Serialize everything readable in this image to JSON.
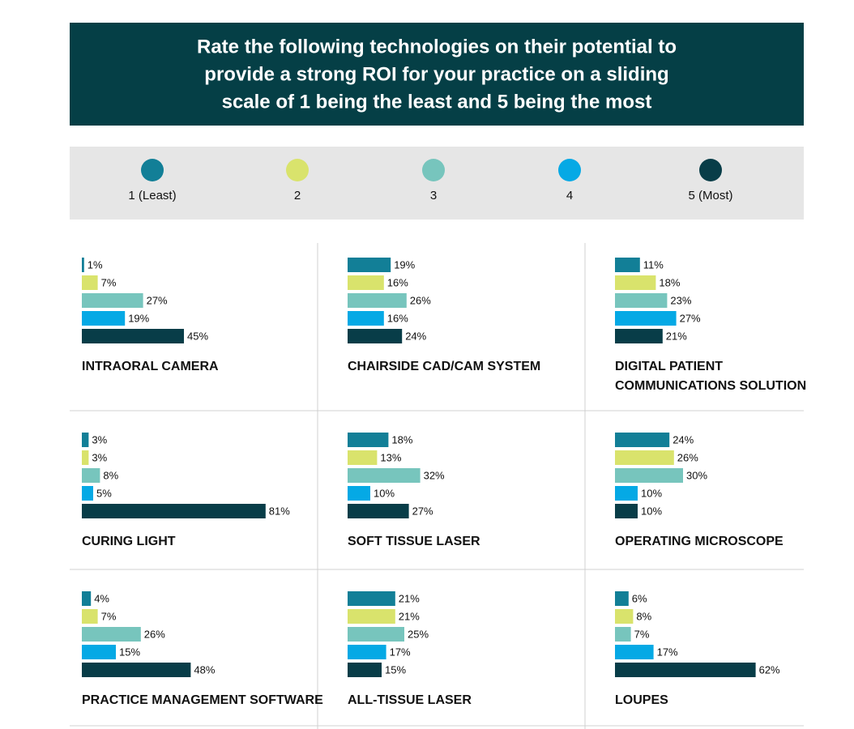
{
  "header": {
    "title": [
      "Rate the following technologies on their potential to",
      "provide a strong ROI for your practice on a sliding",
      "scale of 1 being the least and 5 being the most"
    ]
  },
  "legend": {
    "items": [
      {
        "label": "1 (Least)",
        "color": "#127f97"
      },
      {
        "label": "2",
        "color": "#d9e36c"
      },
      {
        "label": "3",
        "color": "#77c5bd"
      },
      {
        "label": "4",
        "color": "#05a9e5"
      },
      {
        "label": "5 (Most)",
        "color": "#083d48"
      }
    ]
  },
  "chart_data": [
    {
      "type": "bar",
      "orientation": "horizontal",
      "title": [
        "INTRAORAL CAMERA"
      ],
      "values": [
        1,
        7,
        27,
        19,
        45
      ],
      "value_labels": [
        "1%",
        "7%",
        "27%",
        "19%",
        "45%"
      ],
      "xlim": [
        0,
        100
      ]
    },
    {
      "type": "bar",
      "orientation": "horizontal",
      "title": [
        "CHAIRSIDE CAD/CAM SYSTEM"
      ],
      "values": [
        19,
        16,
        26,
        16,
        24
      ],
      "value_labels": [
        "19%",
        "16%",
        "26%",
        "16%",
        "24%"
      ],
      "xlim": [
        0,
        100
      ]
    },
    {
      "type": "bar",
      "orientation": "horizontal",
      "title": [
        "DIGITAL PATIENT",
        "COMMUNICATIONS SOLUTION"
      ],
      "values": [
        11,
        18,
        23,
        27,
        21
      ],
      "value_labels": [
        "11%",
        "18%",
        "23%",
        "27%",
        "21%"
      ],
      "xlim": [
        0,
        100
      ]
    },
    {
      "type": "bar",
      "orientation": "horizontal",
      "title": [
        "CURING LIGHT"
      ],
      "values": [
        3,
        3,
        8,
        5,
        81
      ],
      "value_labels": [
        "3%",
        "3%",
        "8%",
        "5%",
        "81%"
      ],
      "xlim": [
        0,
        100
      ]
    },
    {
      "type": "bar",
      "orientation": "horizontal",
      "title": [
        "SOFT TISSUE LASER"
      ],
      "values": [
        18,
        13,
        32,
        10,
        27
      ],
      "value_labels": [
        "18%",
        "13%",
        "32%",
        "10%",
        "27%"
      ],
      "xlim": [
        0,
        100
      ]
    },
    {
      "type": "bar",
      "orientation": "horizontal",
      "title": [
        "OPERATING MICROSCOPE"
      ],
      "values": [
        24,
        26,
        30,
        10,
        10
      ],
      "value_labels": [
        "24%",
        "26%",
        "30%",
        "10%",
        "10%"
      ],
      "xlim": [
        0,
        100
      ]
    },
    {
      "type": "bar",
      "orientation": "horizontal",
      "title": [
        "PRACTICE MANAGEMENT SOFTWARE"
      ],
      "values": [
        4,
        7,
        26,
        15,
        48
      ],
      "value_labels": [
        "4%",
        "7%",
        "26%",
        "15%",
        "48%"
      ],
      "xlim": [
        0,
        100
      ]
    },
    {
      "type": "bar",
      "orientation": "horizontal",
      "title": [
        "ALL-TISSUE LASER"
      ],
      "values": [
        21,
        21,
        25,
        17,
        15
      ],
      "value_labels": [
        "21%",
        "21%",
        "25%",
        "17%",
        "15%"
      ],
      "xlim": [
        0,
        100
      ]
    },
    {
      "type": "bar",
      "orientation": "horizontal",
      "title": [
        "LOUPES"
      ],
      "values": [
        6,
        8,
        7,
        17,
        62
      ],
      "value_labels": [
        "6%",
        "8%",
        "7%",
        "17%",
        "62%"
      ],
      "xlim": [
        0,
        100
      ]
    }
  ]
}
